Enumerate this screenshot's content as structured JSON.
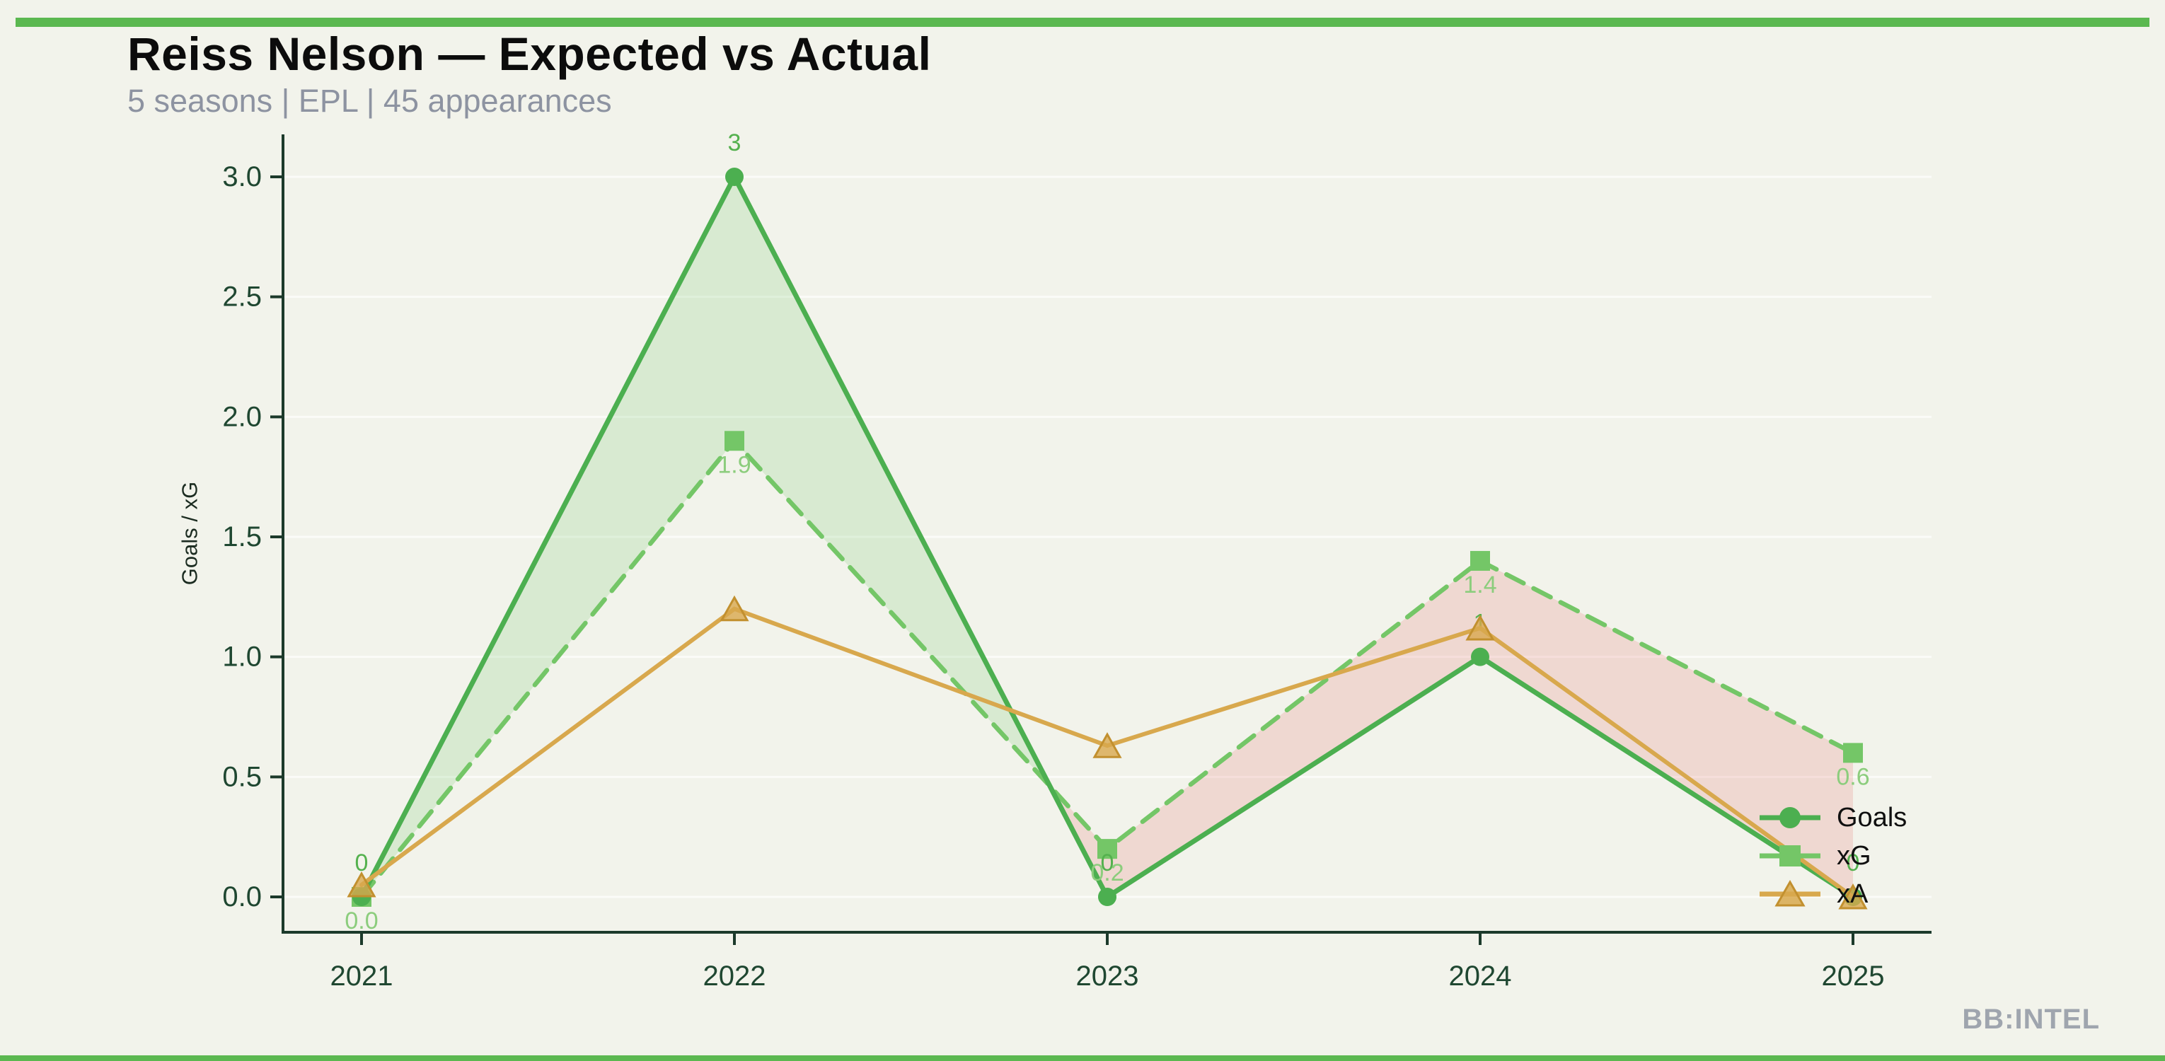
{
  "page": {
    "background_color": "#F2F3EB",
    "accent_bar_color": "#5BB850"
  },
  "header": {
    "title": "Reiss Nelson — Expected vs Actual",
    "subtitle": "5 seasons | EPL | 45 appearances"
  },
  "watermark": {
    "text": "BB:INTEL"
  },
  "chart_data": {
    "type": "line",
    "title": "Reiss Nelson — Expected vs Actual",
    "x": [
      2021,
      2022,
      2023,
      2024,
      2025
    ],
    "x_tick_labels": [
      "2021",
      "2022",
      "2023",
      "2024",
      "2025"
    ],
    "series": [
      {
        "name": "Goals",
        "marker": "circle",
        "line_style": "solid",
        "color": "#4CAF50",
        "label_color": "#54B14E",
        "values": [
          0,
          3,
          0,
          1,
          0
        ],
        "point_labels": [
          "0",
          "3",
          "0",
          "1",
          "0"
        ],
        "label_position": "above"
      },
      {
        "name": "xG",
        "marker": "square",
        "line_style": "dashed",
        "color": "#74C667",
        "label_color": "#8CCD7D",
        "values": [
          0.0,
          1.9,
          0.2,
          1.4,
          0.6
        ],
        "point_labels": [
          "0.0",
          "1.9",
          "0.2",
          "1.4",
          "0.6"
        ],
        "label_position": "below"
      },
      {
        "name": "xA",
        "marker": "triangle",
        "line_style": "solid",
        "color": "#D8A84D",
        "marker_edge_color": "#C2902F",
        "values": [
          0.05,
          1.2,
          0.63,
          1.12,
          0.0
        ],
        "point_labels": [],
        "label_position": "none"
      }
    ],
    "fills": [
      {
        "between": [
          "Goals",
          "xG"
        ],
        "when": "Goals > xG",
        "color": "rgba(116,198,103,0.2)"
      },
      {
        "between": [
          "xG",
          "Goals"
        ],
        "when": "xG > Goals",
        "color": "rgba(230,110,105,0.2)"
      }
    ],
    "ylabel": "Goals / xG",
    "xlabel": "",
    "yticks": [
      "0.0",
      "0.5",
      "1.0",
      "1.5",
      "2.0",
      "2.5",
      "3.0"
    ],
    "ylim": [
      -0.15,
      3.32
    ],
    "grid": true,
    "grid_color": "rgba(255,255,255,0.65)",
    "axis_color": "#1C3A2B",
    "tick_label_color": "#1F4731",
    "ylabel_color": "#1B2B20",
    "legend_position": "lower right",
    "legend_text_color": "#101010",
    "legend": [
      "Goals",
      "xG",
      "xA"
    ]
  }
}
